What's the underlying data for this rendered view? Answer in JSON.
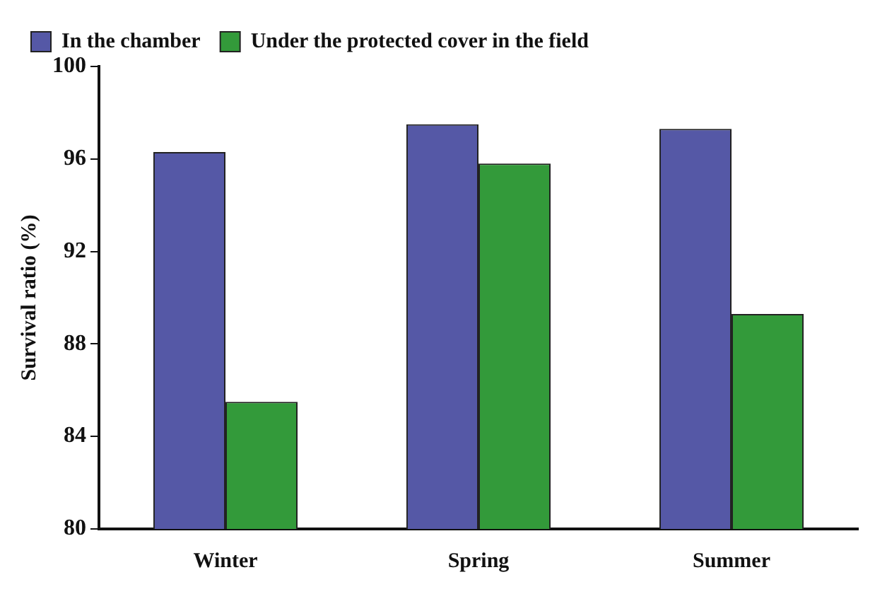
{
  "chart_data": {
    "type": "bar",
    "ylabel": "Survival ratio (%)",
    "categories": [
      "Winter",
      "Spring",
      "Summer"
    ],
    "series": [
      {
        "name": "In the chamber",
        "color": "#5558a6",
        "values": [
          96.3,
          97.5,
          97.3
        ]
      },
      {
        "name": "Under the protected cover in the field",
        "color": "#339a3a",
        "values": [
          85.5,
          95.8,
          89.3
        ]
      }
    ],
    "ylim": [
      80,
      100
    ],
    "yticks": [
      80,
      84,
      88,
      92,
      96,
      100
    ],
    "grid": false,
    "legend": "top"
  }
}
